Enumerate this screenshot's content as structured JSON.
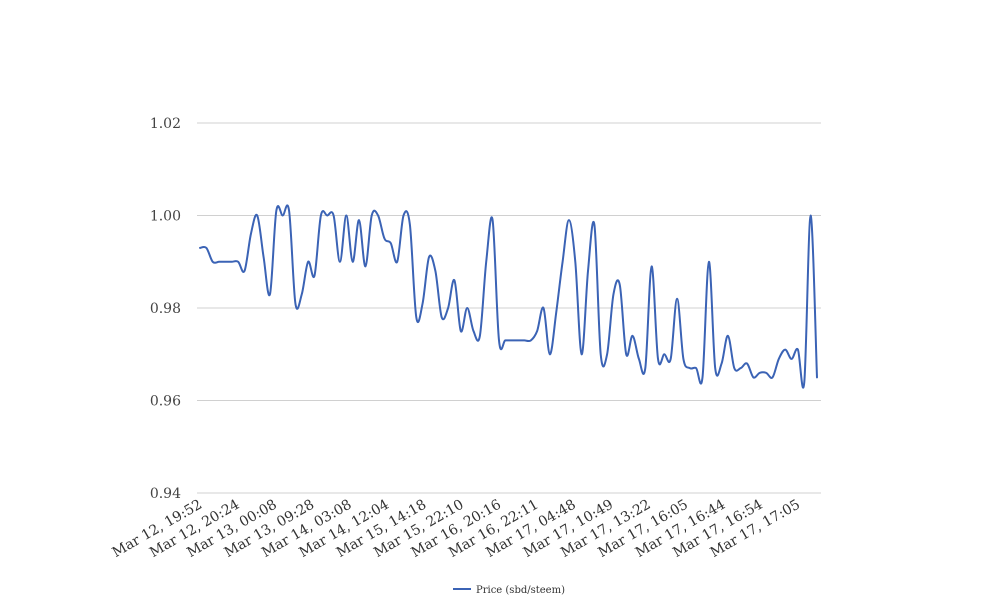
{
  "chart_data": {
    "type": "line",
    "title": "",
    "xlabel": "",
    "ylabel": "",
    "ylim": [
      0.94,
      1.02
    ],
    "y_ticks": [
      "0.94",
      "0.96",
      "0.98",
      "1.00",
      "1.02"
    ],
    "x_tick_labels": [
      "Mar 12, 19:52",
      "Mar 12, 20:24",
      "Mar 13, 00:08",
      "Mar 13, 09:28",
      "Mar 14, 03:08",
      "Mar 14, 12:04",
      "Mar 15, 14:18",
      "Mar 15, 22:10",
      "Mar 16, 20:16",
      "Mar 16, 22:11",
      "Mar 17, 04:48",
      "Mar 17, 10:49",
      "Mar 17, 13:22",
      "Mar 17, 16:05",
      "Mar 17, 16:44",
      "Mar 17, 16:54",
      "Mar 17, 17:05"
    ],
    "grid": true,
    "legend_position": "bottom",
    "series": [
      {
        "name": "Price (sbd/steem)",
        "color": "#3b63b5",
        "values": [
          0.993,
          0.993,
          0.99,
          0.99,
          0.99,
          0.99,
          0.99,
          0.988,
          0.996,
          1.0,
          0.991,
          0.983,
          1.001,
          1.0,
          1.001,
          0.981,
          0.983,
          0.99,
          0.987,
          1.0,
          1.0,
          1.0,
          0.99,
          1.0,
          0.99,
          0.999,
          0.989,
          1.0,
          1.0,
          0.995,
          0.994,
          0.99,
          1.0,
          0.998,
          0.978,
          0.981,
          0.991,
          0.988,
          0.978,
          0.98,
          0.986,
          0.975,
          0.98,
          0.975,
          0.974,
          0.99,
          0.999,
          0.973,
          0.973,
          0.973,
          0.973,
          0.973,
          0.973,
          0.975,
          0.98,
          0.97,
          0.979,
          0.99,
          0.999,
          0.99,
          0.97,
          0.988,
          0.998,
          0.97,
          0.97,
          0.983,
          0.985,
          0.97,
          0.974,
          0.969,
          0.967,
          0.989,
          0.969,
          0.97,
          0.969,
          0.982,
          0.969,
          0.967,
          0.967,
          0.965,
          0.99,
          0.967,
          0.968,
          0.974,
          0.967,
          0.967,
          0.968,
          0.965,
          0.966,
          0.966,
          0.965,
          0.969,
          0.971,
          0.969,
          0.971,
          0.964,
          1.0,
          0.965
        ]
      }
    ]
  }
}
